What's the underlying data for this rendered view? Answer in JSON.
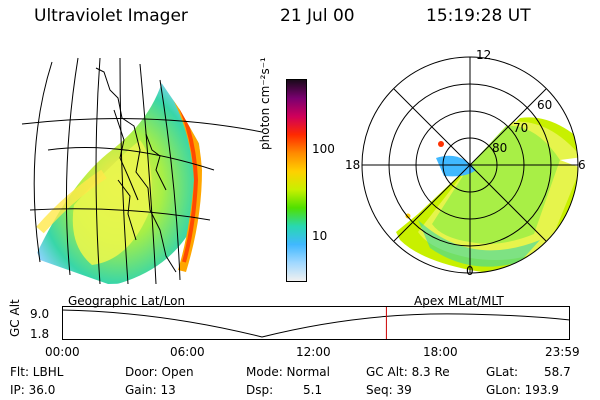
{
  "header": {
    "title": "Ultraviolet Imager",
    "date": "21 Jul 00",
    "time": "15:19:28 UT"
  },
  "colorbar": {
    "unit_label": "photon cm⁻²s⁻¹",
    "ticks": [
      "100",
      "10"
    ],
    "colors": [
      "#1a0a1a",
      "#7a0070",
      "#d0005a",
      "#ff2a00",
      "#ff8a00",
      "#ffd000",
      "#c8f000",
      "#50e000",
      "#28d8b0",
      "#40b8ff",
      "#a0d8ff",
      "#f0f0f0"
    ]
  },
  "polar": {
    "mlt_labels": {
      "top": "12",
      "left": "18",
      "right": "6",
      "bottom": "0"
    },
    "lat_labels": [
      "60",
      "70",
      "80"
    ]
  },
  "timeline": {
    "left_label": "Geographic Lat/Lon",
    "right_label": "Apex MLat/MLT",
    "axis_label": "GC Alt",
    "y_ticks": [
      "9.0",
      "1.8"
    ],
    "x_ticks": [
      "00:00",
      "06:00",
      "12:00",
      "18:00",
      "23:59"
    ],
    "current_time_fraction": 0.6385
  },
  "status": {
    "flt": "Flt: LBHL",
    "ip": "IP: 36.0",
    "door": "Door: Open",
    "gain": "Gain: 13",
    "mode": "Mode: Normal",
    "dsp": "Dsp:",
    "dsp_val": "5.1",
    "gcalt": "GC Alt: 8.3 Re",
    "seq": "Seq: 39",
    "glat": "GLat:",
    "glat_val": "58.7",
    "glon": "GLon: 193.9"
  }
}
